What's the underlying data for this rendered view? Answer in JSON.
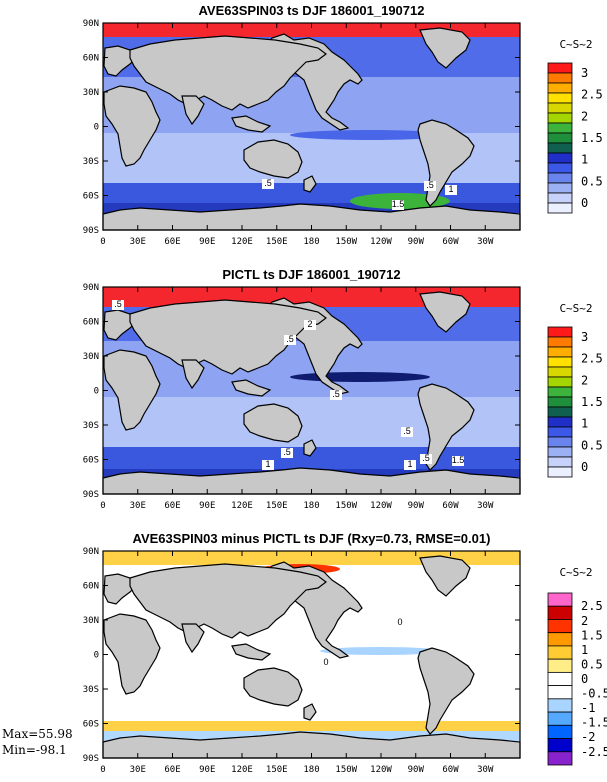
{
  "figure": {
    "panels": [
      {
        "title": "AVE63SPIN03 ts DJF 186001_190712",
        "units": "C~S~2",
        "colorbar": {
          "labels": [
            "3",
            "2.5",
            "2",
            "1.5",
            "1",
            "0.5",
            "0"
          ],
          "colors": [
            "#ff1a1a",
            "#ff7a00",
            "#ffae00",
            "#ffe000",
            "#d8d800",
            "#a6d600",
            "#3cb43c",
            "#1f8f3c",
            "#106050",
            "#1f2fc8",
            "#3b58e6",
            "#6a84ee",
            "#9cb0f4",
            "#c6d2fa",
            "#eaf0ff"
          ]
        },
        "contour_labels": [
          ".5",
          ".5",
          "1",
          "1.5"
        ]
      },
      {
        "title": "PICTL ts DJF 186001_190712",
        "units": "C~S~2",
        "colorbar": {
          "labels": [
            "3",
            "2.5",
            "2",
            "1.5",
            "1",
            "0.5",
            "0"
          ],
          "colors": [
            "#ff1a1a",
            "#ff7a00",
            "#ffae00",
            "#ffe000",
            "#d8d800",
            "#a6d600",
            "#3cb43c",
            "#1f8f3c",
            "#106050",
            "#1f2fc8",
            "#3b58e6",
            "#6a84ee",
            "#9cb0f4",
            "#c6d2fa",
            "#eaf0ff"
          ]
        },
        "contour_labels": [
          ".5",
          "2",
          ".5",
          ".5",
          ".5",
          ".5",
          "1",
          ".5",
          "1",
          "1.5"
        ]
      },
      {
        "title": "AVE63SPIN03 minus PICTL ts DJF (Rxy=0.73, RMSE=0.01)",
        "units": "C~S~2",
        "colorbar": {
          "labels": [
            "2.5",
            "2",
            "1.5",
            "1",
            "0.5",
            "0",
            "-0.5",
            "-1",
            "-1.5",
            "-2",
            "-2.5"
          ],
          "colors": [
            "#ff66cc",
            "#cc0000",
            "#ff3300",
            "#ff9900",
            "#ffcc33",
            "#ffee88",
            "#ffffff",
            "#ffffff",
            "#a8d4ff",
            "#55aaff",
            "#0066ff",
            "#0000cc",
            "#8822cc"
          ]
        },
        "contour_labels": [
          "0",
          "0"
        ]
      }
    ],
    "lat_ticks": [
      "90N",
      "60N",
      "30N",
      "0",
      "30S",
      "60S",
      "90S"
    ],
    "lon_ticks": [
      "0",
      "30E",
      "60E",
      "90E",
      "120E",
      "150E",
      "180",
      "150W",
      "120W",
      "90W",
      "60W",
      "30W"
    ],
    "stats": {
      "max": "Max=55.98",
      "min": "Min=-98.1"
    }
  }
}
